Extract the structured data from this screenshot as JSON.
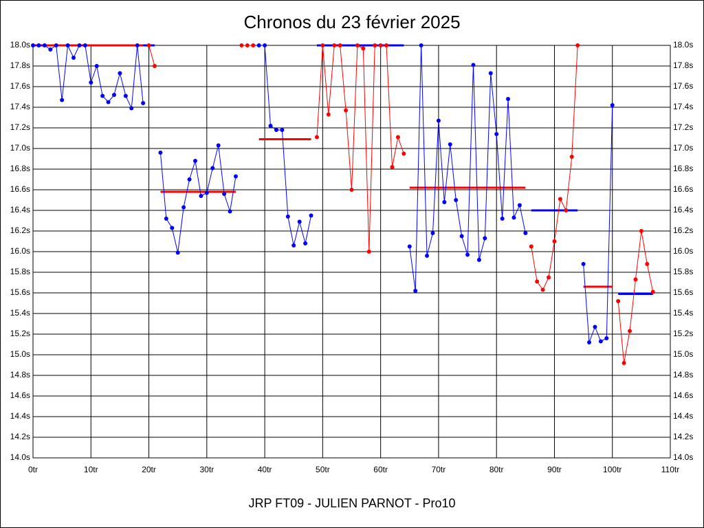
{
  "chart_data": {
    "type": "line",
    "title": "Chronos du 23 février 2025",
    "subtitle": "JRP FT09 - JULIEN PARNOT - Pro10",
    "xlim": [
      0,
      110
    ],
    "ylim": [
      14.0,
      18.0
    ],
    "xticks": [
      {
        "value": 0,
        "label": "0tr"
      },
      {
        "value": 10,
        "label": "10tr"
      },
      {
        "value": 20,
        "label": "20tr"
      },
      {
        "value": 30,
        "label": "30tr"
      },
      {
        "value": 40,
        "label": "40tr"
      },
      {
        "value": 50,
        "label": "50tr"
      },
      {
        "value": 60,
        "label": "60tr"
      },
      {
        "value": 70,
        "label": "70tr"
      },
      {
        "value": 80,
        "label": "80tr"
      },
      {
        "value": 90,
        "label": "90tr"
      },
      {
        "value": 100,
        "label": "100tr"
      },
      {
        "value": 110,
        "label": "110tr"
      }
    ],
    "yticks": [
      {
        "value": 14.0,
        "label": "14.0s"
      },
      {
        "value": 14.2,
        "label": "14.2s"
      },
      {
        "value": 14.4,
        "label": "14.4s"
      },
      {
        "value": 14.6,
        "label": "14.6s"
      },
      {
        "value": 14.8,
        "label": "14.8s"
      },
      {
        "value": 15.0,
        "label": "15.0s"
      },
      {
        "value": 15.2,
        "label": "15.2s"
      },
      {
        "value": 15.4,
        "label": "15.4s"
      },
      {
        "value": 15.6,
        "label": "15.6s"
      },
      {
        "value": 15.8,
        "label": "15.8s"
      },
      {
        "value": 16.0,
        "label": "16.0s"
      },
      {
        "value": 16.2,
        "label": "16.2s"
      },
      {
        "value": 16.4,
        "label": "16.4s"
      },
      {
        "value": 16.6,
        "label": "16.6s"
      },
      {
        "value": 16.8,
        "label": "16.8s"
      },
      {
        "value": 17.0,
        "label": "17.0s"
      },
      {
        "value": 17.2,
        "label": "17.2s"
      },
      {
        "value": 17.4,
        "label": "17.4s"
      },
      {
        "value": 17.6,
        "label": "17.6s"
      },
      {
        "value": 17.8,
        "label": "17.8s"
      },
      {
        "value": 18.0,
        "label": "18.0s"
      }
    ],
    "grid": true,
    "series": [
      {
        "color": "#0000ff",
        "x": [
          0,
          1,
          2,
          3,
          4,
          5,
          6,
          7,
          8,
          9,
          10,
          11,
          12,
          13,
          14,
          15,
          16,
          17,
          18,
          19
        ],
        "values": [
          18.0,
          18.0,
          18.0,
          17.96,
          18.0,
          17.47,
          18.0,
          17.88,
          18.0,
          18.0,
          17.64,
          17.8,
          17.51,
          17.45,
          17.52,
          17.73,
          17.51,
          17.39,
          18.0,
          17.44
        ]
      },
      {
        "color": "#ff0000",
        "x": [
          20,
          21
        ],
        "values": [
          18.0,
          17.8
        ]
      },
      {
        "color": "#0000ff",
        "x": [
          22,
          23,
          24,
          25,
          26,
          27,
          28,
          29,
          30,
          31,
          32,
          33,
          34,
          35
        ],
        "values": [
          16.96,
          16.32,
          16.23,
          15.99,
          16.43,
          16.7,
          16.88,
          16.54,
          16.57,
          16.81,
          17.03,
          16.56,
          16.39,
          16.73
        ]
      },
      {
        "color": "#ff0000",
        "x": [
          36,
          37,
          38
        ],
        "values": [
          18.0,
          18.0,
          18.0
        ]
      },
      {
        "color": "#0000ff",
        "x": [
          39,
          40,
          41,
          42,
          43,
          44,
          45,
          46,
          47,
          48
        ],
        "values": [
          18.0,
          18.0,
          17.22,
          17.18,
          17.18,
          16.34,
          16.06,
          16.29,
          16.08,
          16.35
        ]
      },
      {
        "color": "#ff0000",
        "x": [
          49,
          50,
          51,
          52,
          53,
          54,
          55,
          56,
          57,
          58,
          59,
          60,
          61,
          62,
          63,
          64
        ],
        "values": [
          17.11,
          18.0,
          17.33,
          18.0,
          18.0,
          17.37,
          16.6,
          18.0,
          17.97,
          16.0,
          18.0,
          18.0,
          18.0,
          16.82,
          17.11,
          16.95
        ]
      },
      {
        "color": "#0000ff",
        "x": [
          65,
          66,
          67,
          68,
          69,
          70,
          71,
          72,
          73,
          74,
          75,
          76,
          77,
          78,
          79,
          80,
          81,
          82,
          83,
          84,
          85
        ],
        "values": [
          16.05,
          15.62,
          18.0,
          15.96,
          16.18,
          17.27,
          16.48,
          17.04,
          16.5,
          16.15,
          15.97,
          17.81,
          15.92,
          16.13,
          17.73,
          17.14,
          16.32,
          17.48,
          16.33,
          16.45,
          16.18
        ]
      },
      {
        "color": "#ff0000",
        "x": [
          86,
          87,
          88,
          89,
          90,
          91,
          92,
          93,
          94
        ],
        "values": [
          16.05,
          15.71,
          15.63,
          15.75,
          16.1,
          16.51,
          16.4,
          16.92,
          18.0
        ]
      },
      {
        "color": "#0000ff",
        "x": [
          95,
          96,
          97,
          98,
          99,
          100
        ],
        "values": [
          15.88,
          15.12,
          15.27,
          15.13,
          15.16,
          17.42
        ]
      },
      {
        "color": "#ff0000",
        "x": [
          101,
          102,
          103,
          104,
          105,
          106,
          107
        ],
        "values": [
          15.52,
          14.92,
          15.23,
          15.73,
          16.2,
          15.88,
          15.61
        ]
      }
    ],
    "averages": [
      {
        "color": "#ff0000",
        "x": [
          0,
          19
        ],
        "value": 18.0
      },
      {
        "color": "#0000ff",
        "x": [
          19,
          21
        ],
        "value": 18.0
      },
      {
        "color": "#ff0000",
        "x": [
          22,
          35
        ],
        "value": 16.58
      },
      {
        "color": "#ff0000",
        "x": [
          39,
          48
        ],
        "value": 17.09
      },
      {
        "color": "#0000ff",
        "x": [
          49,
          64
        ],
        "value": 18.0
      },
      {
        "color": "#ff0000",
        "x": [
          65,
          85
        ],
        "value": 16.62
      },
      {
        "color": "#0000ff",
        "x": [
          86,
          94
        ],
        "value": 16.4
      },
      {
        "color": "#ff0000",
        "x": [
          95,
          100
        ],
        "value": 15.66
      },
      {
        "color": "#0000ff",
        "x": [
          101,
          107
        ],
        "value": 15.59
      }
    ]
  }
}
